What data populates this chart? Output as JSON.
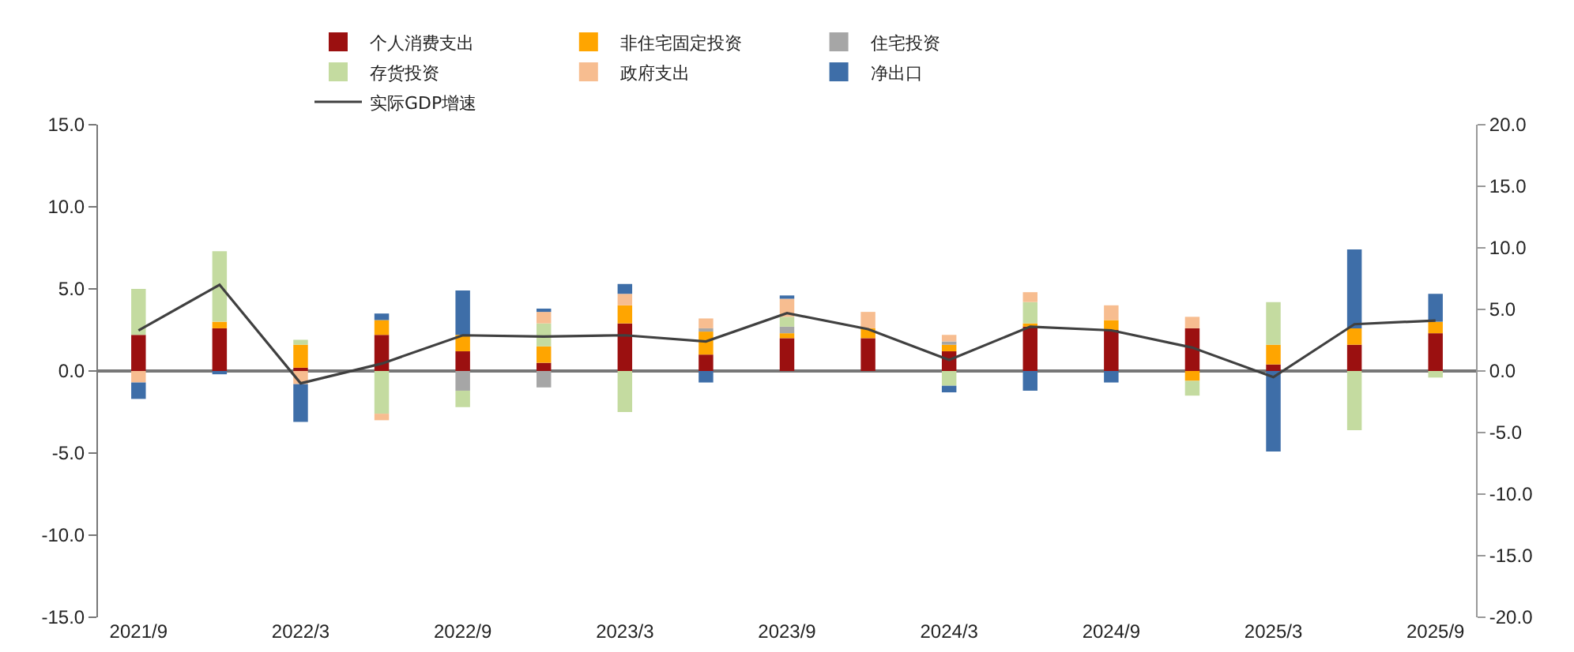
{
  "chart_data": {
    "type": "bar",
    "stacked": true,
    "legend": "top",
    "categories": [
      "2021/9",
      null,
      "2022/3",
      null,
      "2022/9",
      null,
      "2023/3",
      null,
      "2023/9",
      null,
      "2024/3",
      null,
      "2024/9",
      null,
      "2025/3",
      null,
      "2025/9"
    ],
    "series": [
      {
        "name": "个人消费支出",
        "color": "#9b1010",
        "values": [
          2.2,
          2.6,
          0.2,
          2.2,
          1.2,
          0.5,
          2.9,
          1.0,
          2.0,
          2.0,
          1.2,
          2.7,
          2.5,
          2.6,
          0.4,
          1.6,
          2.3
        ]
      },
      {
        "name": "非住宅固定投资",
        "color": "#ffa500",
        "values": [
          0,
          0.4,
          1.4,
          0.9,
          1.0,
          1.0,
          1.1,
          1.4,
          0.3,
          0.6,
          0.4,
          0.2,
          0.6,
          -0.6,
          1.2,
          1.0,
          0.7
        ]
      },
      {
        "name": "住宅投资",
        "color": "#a6a6a6",
        "values": [
          0,
          0,
          0,
          0,
          -1.2,
          -1.0,
          0,
          0.2,
          0.4,
          0,
          0.2,
          0,
          0,
          0,
          0,
          0,
          0
        ]
      },
      {
        "name": "存货投资",
        "color": "#c4dba0",
        "values": [
          2.8,
          4.3,
          0.3,
          -2.6,
          -1.0,
          1.4,
          -2.5,
          0,
          0.6,
          0,
          -0.9,
          1.3,
          0,
          -0.9,
          2.6,
          -3.6,
          -0.4
        ]
      },
      {
        "name": "政府支出",
        "color": "#f7bd90",
        "values": [
          -0.7,
          0,
          -0.8,
          -0.4,
          0,
          0.7,
          0.7,
          0.6,
          1.1,
          1.0,
          0.4,
          0.6,
          0.9,
          0.7,
          0,
          0,
          0
        ]
      },
      {
        "name": "净出口",
        "color": "#3e6ea8",
        "values": [
          -1.0,
          -0.2,
          -2.3,
          0.4,
          2.7,
          0.2,
          0.6,
          -0.7,
          0.2,
          0,
          -0.4,
          -1.2,
          -0.7,
          0,
          -4.9,
          4.8,
          1.7
        ]
      },
      {
        "name": "实际GDP增速",
        "type": "line",
        "axis": "y2",
        "color": "#404040",
        "values": [
          3.3,
          7.0,
          -1.0,
          0.6,
          2.9,
          2.8,
          2.9,
          2.4,
          4.7,
          3.4,
          0.9,
          3.6,
          3.3,
          1.9,
          -0.5,
          3.8,
          4.1
        ]
      }
    ],
    "ylim": [
      -15,
      15
    ],
    "yticks": [
      {
        "value": -15,
        "label": "-15.0"
      },
      {
        "value": -10,
        "label": "-10.0"
      },
      {
        "value": -5,
        "label": "-5.0"
      },
      {
        "value": 0,
        "label": "0.0"
      },
      {
        "value": 5,
        "label": "5.0"
      },
      {
        "value": 10,
        "label": "10.0"
      },
      {
        "value": 15,
        "label": "15.0"
      }
    ],
    "y2lim": [
      -20,
      20
    ],
    "y2ticks": [
      {
        "value": -20,
        "label": "-20.0"
      },
      {
        "value": -15,
        "label": "-15.0"
      },
      {
        "value": -10,
        "label": "-10.0"
      },
      {
        "value": -5,
        "label": "-5.0"
      },
      {
        "value": 0,
        "label": "0.0"
      },
      {
        "value": 5,
        "label": "5.0"
      },
      {
        "value": 10,
        "label": "10.0"
      },
      {
        "value": 15,
        "label": "15.0"
      },
      {
        "value": 20,
        "label": "20.0"
      }
    ]
  }
}
